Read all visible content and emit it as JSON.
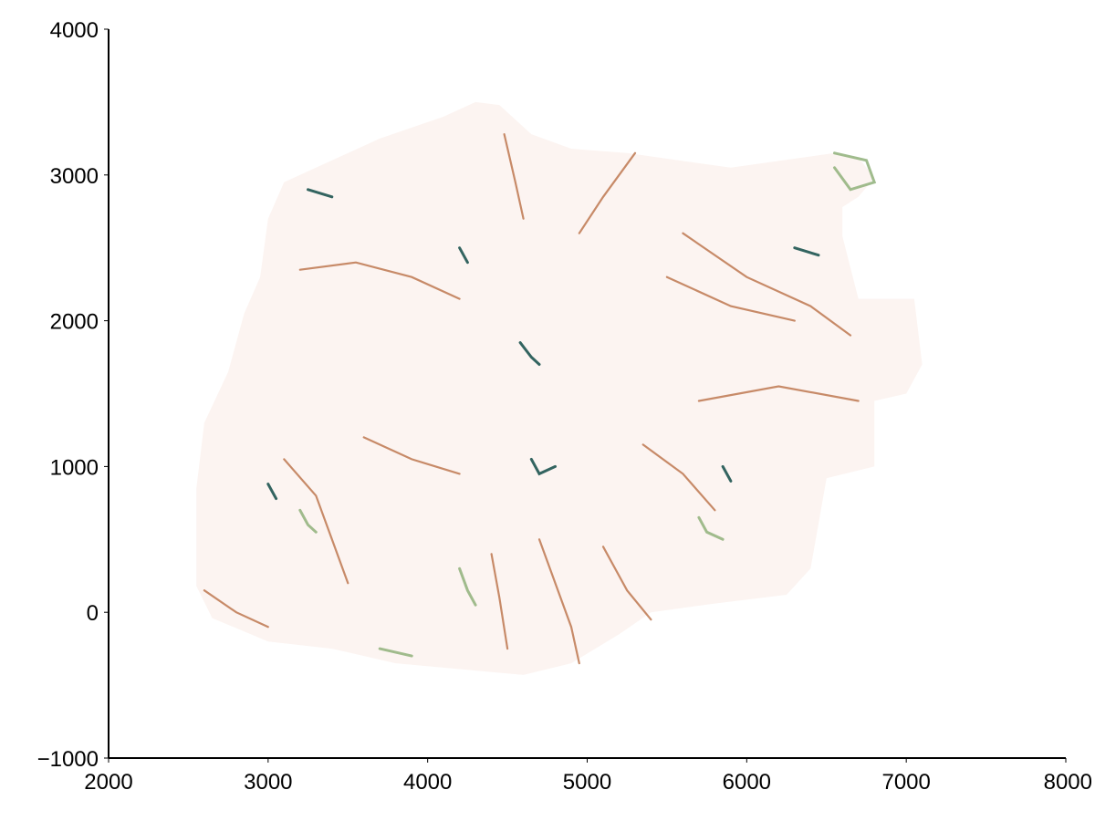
{
  "chart_data": {
    "type": "heatmap",
    "title": "",
    "xlabel": "",
    "ylabel": "",
    "xlim": [
      2000,
      8000
    ],
    "ylim": [
      -1000,
      4000
    ],
    "x_ticks": [
      2000,
      3000,
      4000,
      5000,
      6000,
      7000,
      8000
    ],
    "y_ticks": [
      -1000,
      0,
      1000,
      2000,
      3000,
      4000
    ],
    "x_tick_labels": [
      "2000",
      "3000",
      "4000",
      "5000",
      "6000",
      "7000",
      "8000"
    ],
    "y_tick_labels": [
      "−1000",
      "0",
      "1000",
      "2000",
      "3000",
      "4000"
    ],
    "grid": false,
    "colors": {
      "background_land": "#fcf4f1",
      "positive": "#b5673a",
      "negative_dark": "#0f4a46",
      "negative_light": "#8fb07a"
    },
    "island_outline": [
      [
        4300,
        3500
      ],
      [
        4450,
        3480
      ],
      [
        4650,
        3280
      ],
      [
        4900,
        3180
      ],
      [
        5250,
        3150
      ],
      [
        5900,
        3050
      ],
      [
        6550,
        3150
      ],
      [
        6700,
        3120
      ],
      [
        6800,
        2980
      ],
      [
        6700,
        2850
      ],
      [
        6600,
        2780
      ],
      [
        6600,
        2580
      ],
      [
        6700,
        2150
      ],
      [
        7050,
        2150
      ],
      [
        7100,
        1700
      ],
      [
        7000,
        1500
      ],
      [
        6800,
        1450
      ],
      [
        6800,
        1000
      ],
      [
        6500,
        920
      ],
      [
        6400,
        300
      ],
      [
        6250,
        120
      ],
      [
        5800,
        60
      ],
      [
        5400,
        0
      ],
      [
        5200,
        -150
      ],
      [
        4900,
        -350
      ],
      [
        4600,
        -430
      ],
      [
        4300,
        -400
      ],
      [
        3800,
        -350
      ],
      [
        3400,
        -250
      ],
      [
        3000,
        -200
      ],
      [
        2650,
        -40
      ],
      [
        2550,
        180
      ],
      [
        2550,
        850
      ],
      [
        2600,
        1300
      ],
      [
        2750,
        1650
      ],
      [
        2850,
        2050
      ],
      [
        2950,
        2300
      ],
      [
        3000,
        2700
      ],
      [
        3100,
        2950
      ],
      [
        3300,
        3050
      ],
      [
        3700,
        3250
      ],
      [
        4100,
        3400
      ]
    ],
    "ridges": [
      {
        "sign": "positive",
        "points": [
          [
            4480,
            3280
          ],
          [
            4550,
            2950
          ],
          [
            4600,
            2700
          ]
        ]
      },
      {
        "sign": "positive",
        "points": [
          [
            5300,
            3150
          ],
          [
            5100,
            2850
          ],
          [
            4950,
            2600
          ]
        ]
      },
      {
        "sign": "positive",
        "points": [
          [
            3200,
            2350
          ],
          [
            3550,
            2400
          ],
          [
            3900,
            2300
          ],
          [
            4200,
            2150
          ]
        ]
      },
      {
        "sign": "positive",
        "points": [
          [
            5600,
            2600
          ],
          [
            6000,
            2300
          ],
          [
            6400,
            2100
          ],
          [
            6650,
            1900
          ]
        ]
      },
      {
        "sign": "positive",
        "points": [
          [
            5500,
            2300
          ],
          [
            5900,
            2100
          ],
          [
            6300,
            2000
          ]
        ]
      },
      {
        "sign": "positive",
        "points": [
          [
            5700,
            1450
          ],
          [
            6200,
            1550
          ],
          [
            6700,
            1450
          ]
        ]
      },
      {
        "sign": "positive",
        "points": [
          [
            3100,
            1050
          ],
          [
            3300,
            800
          ],
          [
            3400,
            500
          ],
          [
            3500,
            200
          ]
        ]
      },
      {
        "sign": "positive",
        "points": [
          [
            4700,
            500
          ],
          [
            4800,
            200
          ],
          [
            4900,
            -100
          ],
          [
            4950,
            -350
          ]
        ]
      },
      {
        "sign": "positive",
        "points": [
          [
            4400,
            400
          ],
          [
            4450,
            100
          ],
          [
            4500,
            -250
          ]
        ]
      },
      {
        "sign": "positive",
        "points": [
          [
            5100,
            450
          ],
          [
            5250,
            150
          ],
          [
            5400,
            -50
          ]
        ]
      },
      {
        "sign": "positive",
        "points": [
          [
            3600,
            1200
          ],
          [
            3900,
            1050
          ],
          [
            4200,
            950
          ]
        ]
      },
      {
        "sign": "positive",
        "points": [
          [
            2600,
            150
          ],
          [
            2800,
            0
          ],
          [
            3000,
            -100
          ]
        ]
      },
      {
        "sign": "positive",
        "points": [
          [
            5350,
            1150
          ],
          [
            5600,
            950
          ],
          [
            5800,
            700
          ]
        ]
      },
      {
        "sign": "negative_dark",
        "points": [
          [
            4580,
            1850
          ],
          [
            4650,
            1750
          ],
          [
            4700,
            1700
          ]
        ]
      },
      {
        "sign": "negative_dark",
        "points": [
          [
            4650,
            1050
          ],
          [
            4700,
            950
          ],
          [
            4800,
            1000
          ]
        ]
      },
      {
        "sign": "negative_dark",
        "points": [
          [
            3000,
            880
          ],
          [
            3050,
            780
          ]
        ]
      },
      {
        "sign": "negative_dark",
        "points": [
          [
            5850,
            1000
          ],
          [
            5900,
            900
          ]
        ]
      },
      {
        "sign": "negative_dark",
        "points": [
          [
            3250,
            2900
          ],
          [
            3400,
            2850
          ]
        ]
      },
      {
        "sign": "negative_dark",
        "points": [
          [
            4200,
            2500
          ],
          [
            4250,
            2400
          ]
        ]
      },
      {
        "sign": "negative_dark",
        "points": [
          [
            6300,
            2500
          ],
          [
            6450,
            2450
          ]
        ]
      },
      {
        "sign": "negative_light",
        "points": [
          [
            6550,
            3150
          ],
          [
            6750,
            3100
          ],
          [
            6800,
            2950
          ],
          [
            6650,
            2900
          ],
          [
            6550,
            3050
          ]
        ]
      },
      {
        "sign": "negative_light",
        "points": [
          [
            4200,
            300
          ],
          [
            4250,
            150
          ],
          [
            4300,
            50
          ]
        ]
      },
      {
        "sign": "negative_light",
        "points": [
          [
            5700,
            650
          ],
          [
            5750,
            550
          ],
          [
            5850,
            500
          ]
        ]
      },
      {
        "sign": "negative_light",
        "points": [
          [
            3700,
            -250
          ],
          [
            3900,
            -300
          ]
        ]
      },
      {
        "sign": "negative_light",
        "points": [
          [
            3200,
            700
          ],
          [
            3250,
            600
          ],
          [
            3300,
            550
          ]
        ]
      }
    ]
  }
}
